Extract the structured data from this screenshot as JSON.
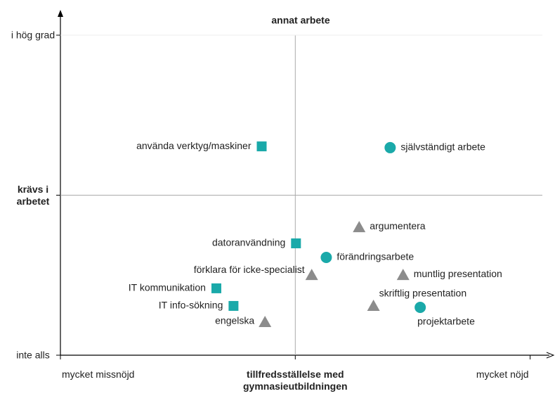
{
  "chart_data": {
    "type": "scatter",
    "title": "annat arbete",
    "xlim": [
      0,
      2.07
    ],
    "ylim": [
      0,
      2.0
    ],
    "xticks": [
      {
        "value": 0,
        "label": "mycket missnöjd"
      },
      {
        "value": 1,
        "label": "tillfredsställelse med gymnasieutbildningen"
      },
      {
        "value": 2,
        "label": "mycket nöjd"
      }
    ],
    "yticks": [
      {
        "value": 0,
        "label": "inte alls"
      },
      {
        "value": 1,
        "label": "krävs i arbetet"
      },
      {
        "value": 2,
        "label": "i hög grad"
      }
    ],
    "grid": true,
    "points": [
      {
        "label": "använda verktyg/maskiner",
        "x": 0.857,
        "y": 1.305,
        "marker": "square",
        "color": "#1aa9a9"
      },
      {
        "label": "självständigt arbete",
        "x": 1.404,
        "y": 1.297,
        "marker": "circle",
        "color": "#1aa9a9"
      },
      {
        "label": "argumentera",
        "x": 1.272,
        "y": 0.804,
        "marker": "triangle",
        "color": "#8c8c8c"
      },
      {
        "label": "datoranvändning",
        "x": 1.003,
        "y": 0.699,
        "marker": "square",
        "color": "#1aa9a9"
      },
      {
        "label": "förändringsarbete",
        "x": 1.132,
        "y": 0.611,
        "marker": "circle",
        "color": "#1aa9a9"
      },
      {
        "label": "förklara för icke-specialist",
        "x": 1.07,
        "y": 0.505,
        "marker": "triangle",
        "color": "#8c8c8c"
      },
      {
        "label": "muntlig presentation",
        "x": 1.459,
        "y": 0.505,
        "marker": "triangle",
        "color": "#8c8c8c"
      },
      {
        "label": "IT kommunikation",
        "x": 0.664,
        "y": 0.418,
        "marker": "square",
        "color": "#1aa9a9"
      },
      {
        "label": "skriftlig presentation",
        "x": 1.333,
        "y": 0.312,
        "marker": "triangle",
        "color": "#8c8c8c"
      },
      {
        "label": "projektarbete",
        "x": 1.532,
        "y": 0.299,
        "marker": "circle",
        "color": "#1aa9a9"
      },
      {
        "label": "IT info-sökning",
        "x": 0.737,
        "y": 0.308,
        "marker": "square",
        "color": "#1aa9a9"
      },
      {
        "label": "engelska",
        "x": 0.871,
        "y": 0.211,
        "marker": "triangle",
        "color": "#8c8c8c"
      }
    ]
  }
}
